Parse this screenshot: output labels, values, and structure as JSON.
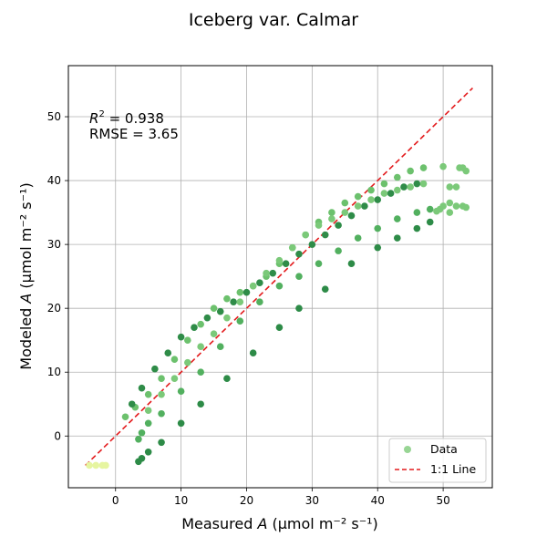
{
  "chart_data": {
    "type": "scatter",
    "title": "Iceberg var. Calmar",
    "xlabel": {
      "pre": "Measured ",
      "var": "A",
      "unit": " (μmol m⁻² s⁻¹)"
    },
    "ylabel": {
      "pre": "Modeled ",
      "var": "A",
      "unit": " (μmol m⁻² s⁻¹)"
    },
    "xlim": [
      -7.2,
      57.5
    ],
    "ylim": [
      -8.1,
      58.0
    ],
    "xticks": [
      0,
      10,
      20,
      30,
      40,
      50
    ],
    "yticks": [
      0,
      10,
      20,
      30,
      40,
      50
    ],
    "grid": true,
    "annotation": {
      "r2_prefix": "R",
      "r2_sup": "2",
      "r2_value": " = 0.938",
      "rmse": "RMSE = 3.65"
    },
    "legend": {
      "location": "lower-right",
      "entries": [
        "Data",
        "1:1 Line"
      ]
    },
    "colors": {
      "data_legend": "#98d594",
      "line": "#e31a1c",
      "dark": "#00592c",
      "mid": "#3fa358",
      "light": "#7bc979",
      "pale": "#e6f5a0"
    },
    "reference_line": {
      "name": "1:1 Line",
      "x": [
        -4.6,
        54.5
      ],
      "y": [
        -4.6,
        54.5
      ]
    },
    "series": [
      {
        "name": "Data",
        "x": [
          -4.0,
          -3.0,
          -2.0,
          -1.5
        ],
        "y": [
          -4.6,
          -4.6,
          -4.6,
          -4.6
        ],
        "color": "#e6f5a0"
      },
      {
        "name": "Data",
        "x": [
          3.5,
          4.0,
          5.0,
          7.0,
          10.0,
          13.0,
          17.0,
          21.0,
          25.0,
          28.0,
          32.0,
          36.0,
          40.0,
          43.0,
          46.0,
          48.0
        ],
        "y": [
          -4.0,
          -3.5,
          -2.5,
          -1.0,
          2.0,
          5.0,
          9.0,
          13.0,
          17.0,
          20.0,
          23.0,
          27.0,
          29.5,
          31.0,
          32.5,
          33.5
        ],
        "color": "#2d8b47"
      },
      {
        "name": "Data",
        "x": [
          3.5,
          4.0,
          5.0,
          7.0,
          10.0,
          13.0,
          16.0,
          19.0,
          22.0,
          25.0,
          28.0,
          31.0,
          34.0,
          37.0,
          40.0,
          43.0,
          46.0,
          48.0
        ],
        "y": [
          -0.5,
          0.5,
          2.0,
          3.5,
          7.0,
          10.0,
          14.0,
          18.0,
          21.0,
          23.5,
          25.0,
          27.0,
          29.0,
          31.0,
          32.5,
          34.0,
          35.0,
          35.5
        ],
        "color": "#52b05f"
      },
      {
        "name": "Data",
        "x": [
          1.5,
          3.0,
          5.0,
          7.0,
          9.0,
          11.0,
          13.0,
          15.0,
          17.0,
          19.0,
          21.0,
          23.0,
          25.0,
          27.0,
          29.0,
          31.0,
          33.0,
          35.0,
          37.0,
          39.0,
          41.0,
          43.0,
          45.0,
          47.0
        ],
        "y": [
          3.0,
          4.5,
          6.5,
          9.0,
          12.0,
          15.0,
          17.5,
          20.0,
          21.5,
          22.5,
          23.5,
          25.0,
          27.0,
          29.5,
          31.5,
          33.5,
          35.0,
          36.5,
          37.5,
          38.5,
          39.5,
          40.5,
          41.5,
          42.0
        ],
        "color": "#6cc16d"
      },
      {
        "name": "Data",
        "x": [
          2.5,
          4.0,
          6.0,
          8.0,
          10.0,
          12.0,
          14.0,
          16.0,
          18.0,
          20.0,
          22.0,
          24.0,
          26.0,
          28.0,
          30.0,
          32.0,
          34.0,
          36.0,
          38.0,
          40.0,
          42.0,
          44.0,
          46.0
        ],
        "y": [
          5.0,
          7.5,
          10.5,
          13.0,
          15.5,
          17.0,
          18.5,
          19.5,
          21.0,
          22.5,
          24.0,
          25.5,
          27.0,
          28.5,
          30.0,
          31.5,
          33.0,
          34.5,
          36.0,
          37.0,
          38.0,
          39.0,
          39.5
        ],
        "color": "#2f8c48"
      },
      {
        "name": "Data",
        "x": [
          5.0,
          7.0,
          9.0,
          11.0,
          13.0,
          15.0,
          17.0,
          19.0,
          21.0,
          23.0,
          25.0,
          27.0,
          29.0,
          31.0,
          33.0,
          35.0,
          37.0,
          39.0,
          41.0,
          43.0,
          45.0,
          47.0
        ],
        "y": [
          4.0,
          6.5,
          9.0,
          11.5,
          14.0,
          16.0,
          18.5,
          21.0,
          23.5,
          25.5,
          27.5,
          29.5,
          31.5,
          33.0,
          34.0,
          35.0,
          36.0,
          37.0,
          38.0,
          38.5,
          39.0,
          39.5
        ],
        "color": "#7bc979"
      },
      {
        "name": "Data",
        "x": [
          50.0,
          51.0,
          52.0,
          52.5,
          53.0,
          53.5,
          50.0,
          51.0,
          52.0,
          53.0,
          53.5,
          49.5,
          51.0,
          49.0
        ],
        "y": [
          42.2,
          39.0,
          39.0,
          42.0,
          42.0,
          41.5,
          36.0,
          35.0,
          36.0,
          36.0,
          35.8,
          35.5,
          36.5,
          35.2
        ],
        "color": "#7bc979"
      }
    ]
  }
}
